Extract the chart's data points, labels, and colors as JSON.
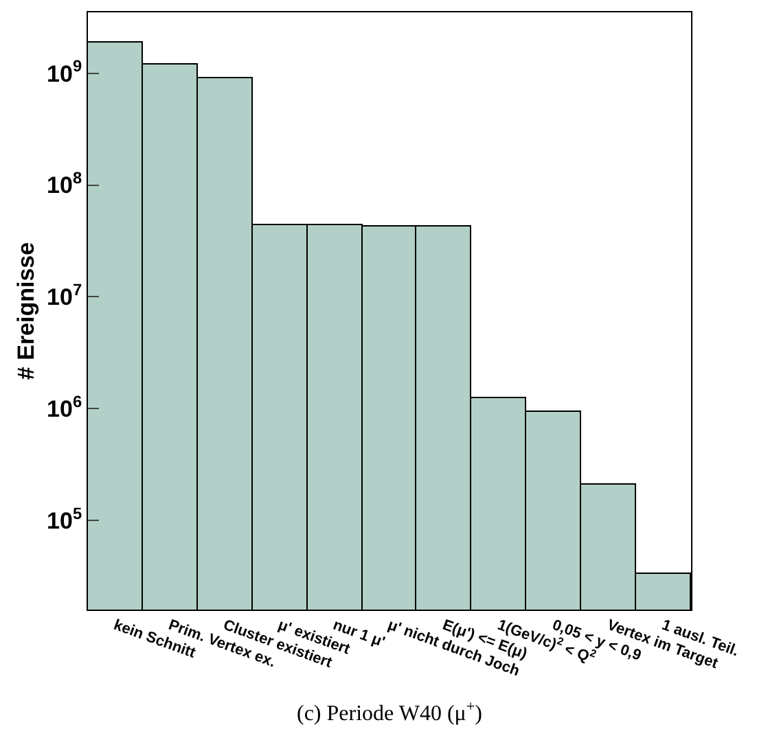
{
  "chart_data": {
    "type": "bar",
    "categories": [
      "kein Schnitt",
      "Prim. Vertex ex.",
      "Cluster existiert",
      "μ' existiert",
      "nur 1 μ'",
      "μ' nicht durch Joch",
      "E(μ') <= E(μ)",
      "1(GeV/c)$^{2}$ < Q$^{2}$",
      "0,05 < y < 0,9",
      "Vertex im Target",
      "1 ausl. Teil."
    ],
    "values": [
      1900000000,
      1200000000,
      900000000,
      44000000,
      44000000,
      43000000,
      43000000,
      1250000,
      950000,
      210000,
      33000
    ],
    "color": "#b2d0c8",
    "ylabel": "# Ereignisse",
    "log": "y",
    "ylim": [
      16000,
      3500000000
    ],
    "yticks": [
      {
        "value": 100000,
        "label": "10$^{5}$"
      },
      {
        "value": 1000000,
        "label": "10$^{6}$"
      },
      {
        "value": 10000000,
        "label": "10$^{7}$"
      },
      {
        "value": 100000000,
        "label": "10$^{8}$"
      },
      {
        "value": 1000000000,
        "label": "10$^{9}$"
      }
    ],
    "legend": false,
    "annotations": [
      "(c) Periode W40 (μ$^{+}$)"
    ]
  }
}
